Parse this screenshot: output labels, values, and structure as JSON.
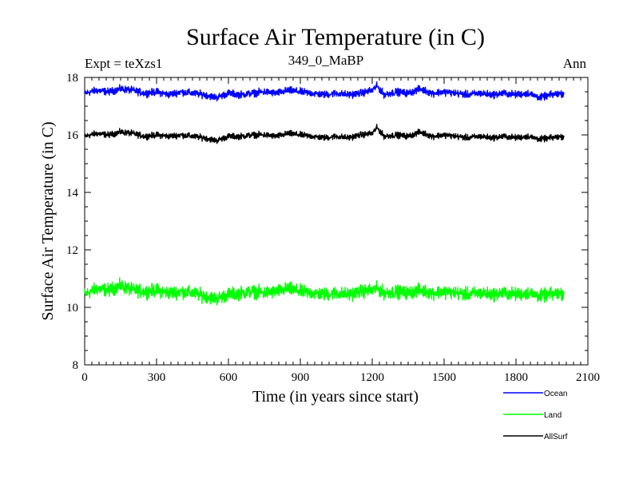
{
  "chart_data": {
    "type": "line",
    "title": "Surface Air Temperature (in C)",
    "subtitle_left": "Expt = teXzs1",
    "subtitle_center": "349_0_MaBP",
    "subtitle_right": "Ann",
    "xlabel": "Time (in years since start)",
    "ylabel": "Surface Air Temperature (in C)",
    "xlim": [
      0,
      2100
    ],
    "ylim": [
      8,
      18
    ],
    "xticks": [
      0,
      300,
      600,
      900,
      1200,
      1500,
      1800,
      2100
    ],
    "yticks": [
      8,
      10,
      12,
      14,
      16,
      18
    ],
    "x": [
      0,
      50,
      100,
      150,
      200,
      250,
      300,
      350,
      400,
      450,
      500,
      550,
      600,
      650,
      700,
      750,
      800,
      850,
      900,
      950,
      1000,
      1050,
      1100,
      1150,
      1200,
      1220,
      1250,
      1300,
      1350,
      1400,
      1450,
      1500,
      1550,
      1600,
      1650,
      1700,
      1750,
      1800,
      1850,
      1900,
      1950,
      2000
    ],
    "series": [
      {
        "name": "Ocean",
        "color": "#0000ff",
        "values": [
          17.45,
          17.55,
          17.5,
          17.6,
          17.55,
          17.45,
          17.5,
          17.4,
          17.5,
          17.45,
          17.4,
          17.3,
          17.45,
          17.4,
          17.45,
          17.5,
          17.45,
          17.55,
          17.5,
          17.45,
          17.4,
          17.45,
          17.4,
          17.45,
          17.55,
          17.7,
          17.4,
          17.5,
          17.45,
          17.6,
          17.45,
          17.5,
          17.45,
          17.4,
          17.45,
          17.4,
          17.45,
          17.4,
          17.45,
          17.3,
          17.4,
          17.45
        ]
      },
      {
        "name": "Land",
        "color": "#00ff00",
        "values": [
          10.45,
          10.65,
          10.6,
          10.75,
          10.6,
          10.55,
          10.6,
          10.5,
          10.55,
          10.5,
          10.4,
          10.3,
          10.45,
          10.5,
          10.55,
          10.5,
          10.55,
          10.65,
          10.55,
          10.5,
          10.45,
          10.5,
          10.45,
          10.55,
          10.6,
          10.65,
          10.5,
          10.55,
          10.5,
          10.6,
          10.5,
          10.55,
          10.5,
          10.45,
          10.5,
          10.45,
          10.5,
          10.45,
          10.5,
          10.4,
          10.45,
          10.5
        ]
      },
      {
        "name": "AllSurf",
        "color": "#000000",
        "values": [
          15.95,
          16.05,
          16.0,
          16.1,
          16.05,
          15.95,
          16.0,
          15.95,
          16.0,
          15.95,
          15.9,
          15.8,
          15.95,
          15.95,
          16.0,
          16.0,
          15.95,
          16.05,
          16.0,
          15.95,
          15.9,
          15.95,
          15.9,
          16.0,
          16.05,
          16.25,
          15.95,
          16.0,
          15.95,
          16.1,
          15.95,
          16.0,
          15.95,
          15.9,
          15.95,
          15.9,
          15.95,
          15.9,
          15.95,
          15.85,
          15.9,
          15.95
        ]
      }
    ],
    "legend_position": "bottom-right"
  }
}
